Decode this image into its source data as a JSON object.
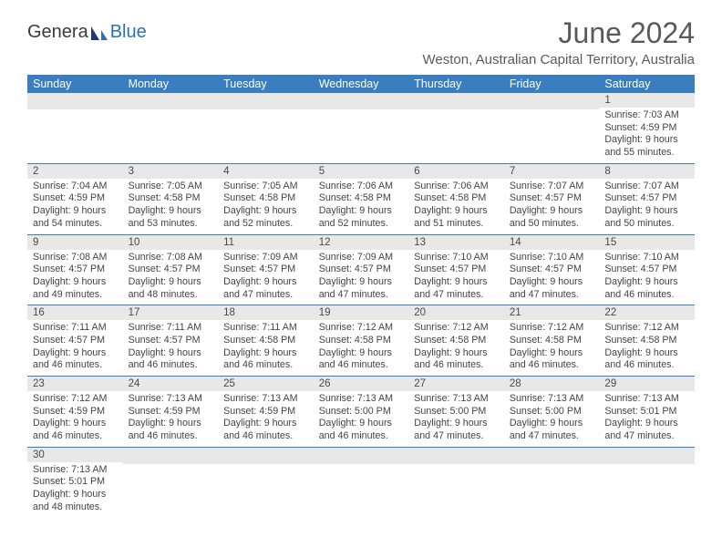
{
  "logo": {
    "text1": "Genera",
    "text2": "Blue"
  },
  "title": "June 2024",
  "location": "Weston, Australian Capital Territory, Australia",
  "colors": {
    "header_bg": "#3a7ec0",
    "header_text": "#ffffff",
    "daynum_bg": "#e8e8e8",
    "border": "#3a7ec0",
    "logo_blue": "#2c6fb8",
    "logo_gray": "#3a3a3a"
  },
  "dayNames": [
    "Sunday",
    "Monday",
    "Tuesday",
    "Wednesday",
    "Thursday",
    "Friday",
    "Saturday"
  ],
  "weeks": [
    [
      {
        "num": "",
        "lines": []
      },
      {
        "num": "",
        "lines": []
      },
      {
        "num": "",
        "lines": []
      },
      {
        "num": "",
        "lines": []
      },
      {
        "num": "",
        "lines": []
      },
      {
        "num": "",
        "lines": []
      },
      {
        "num": "1",
        "lines": [
          "Sunrise: 7:03 AM",
          "Sunset: 4:59 PM",
          "Daylight: 9 hours and 55 minutes."
        ]
      }
    ],
    [
      {
        "num": "2",
        "lines": [
          "Sunrise: 7:04 AM",
          "Sunset: 4:59 PM",
          "Daylight: 9 hours and 54 minutes."
        ]
      },
      {
        "num": "3",
        "lines": [
          "Sunrise: 7:05 AM",
          "Sunset: 4:58 PM",
          "Daylight: 9 hours and 53 minutes."
        ]
      },
      {
        "num": "4",
        "lines": [
          "Sunrise: 7:05 AM",
          "Sunset: 4:58 PM",
          "Daylight: 9 hours and 52 minutes."
        ]
      },
      {
        "num": "5",
        "lines": [
          "Sunrise: 7:06 AM",
          "Sunset: 4:58 PM",
          "Daylight: 9 hours and 52 minutes."
        ]
      },
      {
        "num": "6",
        "lines": [
          "Sunrise: 7:06 AM",
          "Sunset: 4:58 PM",
          "Daylight: 9 hours and 51 minutes."
        ]
      },
      {
        "num": "7",
        "lines": [
          "Sunrise: 7:07 AM",
          "Sunset: 4:57 PM",
          "Daylight: 9 hours and 50 minutes."
        ]
      },
      {
        "num": "8",
        "lines": [
          "Sunrise: 7:07 AM",
          "Sunset: 4:57 PM",
          "Daylight: 9 hours and 50 minutes."
        ]
      }
    ],
    [
      {
        "num": "9",
        "lines": [
          "Sunrise: 7:08 AM",
          "Sunset: 4:57 PM",
          "Daylight: 9 hours and 49 minutes."
        ]
      },
      {
        "num": "10",
        "lines": [
          "Sunrise: 7:08 AM",
          "Sunset: 4:57 PM",
          "Daylight: 9 hours and 48 minutes."
        ]
      },
      {
        "num": "11",
        "lines": [
          "Sunrise: 7:09 AM",
          "Sunset: 4:57 PM",
          "Daylight: 9 hours and 47 minutes."
        ]
      },
      {
        "num": "12",
        "lines": [
          "Sunrise: 7:09 AM",
          "Sunset: 4:57 PM",
          "Daylight: 9 hours and 47 minutes."
        ]
      },
      {
        "num": "13",
        "lines": [
          "Sunrise: 7:10 AM",
          "Sunset: 4:57 PM",
          "Daylight: 9 hours and 47 minutes."
        ]
      },
      {
        "num": "14",
        "lines": [
          "Sunrise: 7:10 AM",
          "Sunset: 4:57 PM",
          "Daylight: 9 hours and 47 minutes."
        ]
      },
      {
        "num": "15",
        "lines": [
          "Sunrise: 7:10 AM",
          "Sunset: 4:57 PM",
          "Daylight: 9 hours and 46 minutes."
        ]
      }
    ],
    [
      {
        "num": "16",
        "lines": [
          "Sunrise: 7:11 AM",
          "Sunset: 4:57 PM",
          "Daylight: 9 hours and 46 minutes."
        ]
      },
      {
        "num": "17",
        "lines": [
          "Sunrise: 7:11 AM",
          "Sunset: 4:57 PM",
          "Daylight: 9 hours and 46 minutes."
        ]
      },
      {
        "num": "18",
        "lines": [
          "Sunrise: 7:11 AM",
          "Sunset: 4:58 PM",
          "Daylight: 9 hours and 46 minutes."
        ]
      },
      {
        "num": "19",
        "lines": [
          "Sunrise: 7:12 AM",
          "Sunset: 4:58 PM",
          "Daylight: 9 hours and 46 minutes."
        ]
      },
      {
        "num": "20",
        "lines": [
          "Sunrise: 7:12 AM",
          "Sunset: 4:58 PM",
          "Daylight: 9 hours and 46 minutes."
        ]
      },
      {
        "num": "21",
        "lines": [
          "Sunrise: 7:12 AM",
          "Sunset: 4:58 PM",
          "Daylight: 9 hours and 46 minutes."
        ]
      },
      {
        "num": "22",
        "lines": [
          "Sunrise: 7:12 AM",
          "Sunset: 4:58 PM",
          "Daylight: 9 hours and 46 minutes."
        ]
      }
    ],
    [
      {
        "num": "23",
        "lines": [
          "Sunrise: 7:12 AM",
          "Sunset: 4:59 PM",
          "Daylight: 9 hours and 46 minutes."
        ]
      },
      {
        "num": "24",
        "lines": [
          "Sunrise: 7:13 AM",
          "Sunset: 4:59 PM",
          "Daylight: 9 hours and 46 minutes."
        ]
      },
      {
        "num": "25",
        "lines": [
          "Sunrise: 7:13 AM",
          "Sunset: 4:59 PM",
          "Daylight: 9 hours and 46 minutes."
        ]
      },
      {
        "num": "26",
        "lines": [
          "Sunrise: 7:13 AM",
          "Sunset: 5:00 PM",
          "Daylight: 9 hours and 46 minutes."
        ]
      },
      {
        "num": "27",
        "lines": [
          "Sunrise: 7:13 AM",
          "Sunset: 5:00 PM",
          "Daylight: 9 hours and 47 minutes."
        ]
      },
      {
        "num": "28",
        "lines": [
          "Sunrise: 7:13 AM",
          "Sunset: 5:00 PM",
          "Daylight: 9 hours and 47 minutes."
        ]
      },
      {
        "num": "29",
        "lines": [
          "Sunrise: 7:13 AM",
          "Sunset: 5:01 PM",
          "Daylight: 9 hours and 47 minutes."
        ]
      }
    ],
    [
      {
        "num": "30",
        "lines": [
          "Sunrise: 7:13 AM",
          "Sunset: 5:01 PM",
          "Daylight: 9 hours and 48 minutes."
        ]
      },
      {
        "num": "",
        "lines": []
      },
      {
        "num": "",
        "lines": []
      },
      {
        "num": "",
        "lines": []
      },
      {
        "num": "",
        "lines": []
      },
      {
        "num": "",
        "lines": []
      },
      {
        "num": "",
        "lines": []
      }
    ]
  ]
}
